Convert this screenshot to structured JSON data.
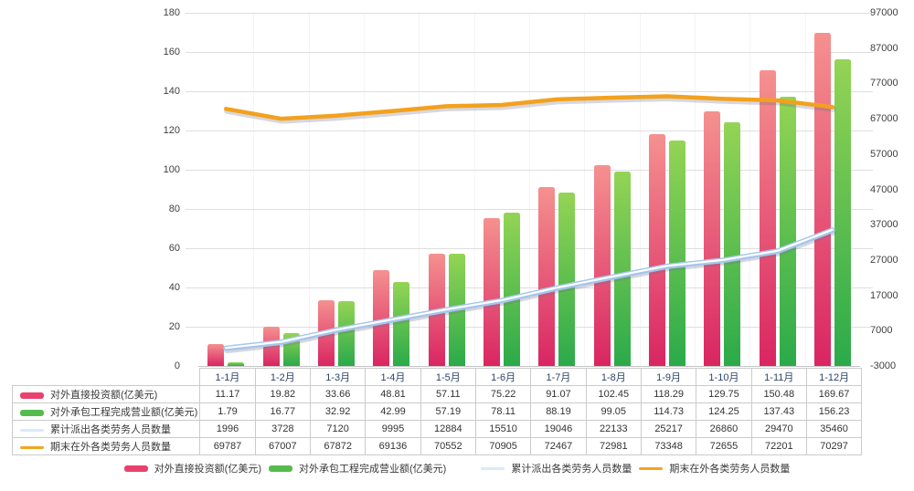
{
  "chart_data": {
    "type": "combo-bar-line",
    "title": "",
    "categories": [
      "1-1月",
      "1-2月",
      "1-3月",
      "1-4月",
      "1-5月",
      "1-6月",
      "1-7月",
      "1-8月",
      "1-9月",
      "1-10月",
      "1-11月",
      "1-12月"
    ],
    "series": [
      {
        "key": "outward-direct-investment",
        "name": "对外直接投资额(亿美元)",
        "type": "bar",
        "axis": "left",
        "color_top": "#f5918f",
        "color_bottom": "#d92562",
        "swatch": "#e8416d",
        "values": [
          11.17,
          19.82,
          33.66,
          48.81,
          57.11,
          75.22,
          91.07,
          102.45,
          118.29,
          129.75,
          150.48,
          169.67
        ]
      },
      {
        "key": "contracted-projects-turnover",
        "name": "对外承包工程完成营业额(亿美元)",
        "type": "bar",
        "axis": "left",
        "color_top": "#94d455",
        "color_bottom": "#2baa4a",
        "swatch": "#55bb4d",
        "values": [
          1.79,
          16.77,
          32.92,
          42.99,
          57.19,
          78.11,
          88.19,
          99.05,
          114.73,
          124.25,
          137.43,
          156.23
        ]
      },
      {
        "key": "cumulative-dispatched-labor",
        "name": "累计派出各类劳务人员数量",
        "type": "line",
        "axis": "right",
        "color": "#a5c6ec",
        "core": "#ffffff",
        "swatch": "#dce9f7",
        "values": [
          1996,
          3728,
          7120,
          9995,
          12884,
          15510,
          19046,
          22133,
          25217,
          26860,
          29470,
          35460
        ]
      },
      {
        "key": "labor-abroad-period-end",
        "name": "期末在外各类劳务人员数量",
        "type": "line",
        "axis": "right",
        "color": "#f3a11d",
        "core": "",
        "swatch": "#f3a11d",
        "values": [
          69787,
          67007,
          67872,
          69136,
          70552,
          70905,
          72467,
          72981,
          73348,
          72655,
          72201,
          70297
        ]
      }
    ],
    "left_axis": {
      "min": 0,
      "max": 180,
      "step": 20,
      "ticks": [
        0,
        20,
        40,
        60,
        80,
        100,
        120,
        140,
        160,
        180
      ]
    },
    "right_axis": {
      "min": -3000,
      "max": 97000,
      "step": 10000,
      "ticks": [
        -3000,
        7000,
        17000,
        27000,
        37000,
        47000,
        57000,
        67000,
        77000,
        87000,
        97000
      ]
    },
    "grid": true,
    "legend_position": "bottom"
  },
  "table": {
    "columns": [
      "1-1月",
      "1-2月",
      "1-3月",
      "1-4月",
      "1-5月",
      "1-6月",
      "1-7月",
      "1-8月",
      "1-9月",
      "1-10月",
      "1-11月",
      "1-12月"
    ],
    "rows": [
      {
        "label": "对外直接投资额(亿美元)",
        "swatch_type": "bar",
        "swatch_color": "#e8416d",
        "values": [
          "11.17",
          "19.82",
          "33.66",
          "48.81",
          "57.11",
          "75.22",
          "91.07",
          "102.45",
          "118.29",
          "129.75",
          "150.48",
          "169.67"
        ]
      },
      {
        "label": "对外承包工程完成营业额(亿美元)",
        "swatch_type": "bar",
        "swatch_color": "#55bb4d",
        "values": [
          "1.79",
          "16.77",
          "32.92",
          "42.99",
          "57.19",
          "78.11",
          "88.19",
          "99.05",
          "114.73",
          "124.25",
          "137.43",
          "156.23"
        ]
      },
      {
        "label": "累计派出各类劳务人员数量",
        "swatch_type": "line",
        "swatch_color": "#dce9f7",
        "values": [
          "1996",
          "3728",
          "7120",
          "9995",
          "12884",
          "15510",
          "19046",
          "22133",
          "25217",
          "26860",
          "29470",
          "35460"
        ]
      },
      {
        "label": "期末在外各类劳务人员数量",
        "swatch_type": "line",
        "swatch_color": "#f3a51f",
        "values": [
          "69787",
          "67007",
          "67872",
          "69136",
          "70552",
          "70905",
          "72467",
          "72981",
          "73348",
          "72655",
          "72201",
          "70297"
        ]
      }
    ]
  },
  "legend": {
    "items": [
      {
        "label": "对外直接投资额(亿美元)",
        "swatch_type": "bar",
        "swatch_color": "#e8416d"
      },
      {
        "label": "对外承包工程完成营业额(亿美元)",
        "swatch_type": "bar",
        "swatch_color": "#55bb4d"
      },
      {
        "label": "累计派出各类劳务人员数量",
        "swatch_type": "line",
        "swatch_color": "#dce9f7"
      },
      {
        "label": "期末在外各类劳务人员数量",
        "swatch_type": "line",
        "swatch_color": "#f3a51f"
      }
    ]
  }
}
